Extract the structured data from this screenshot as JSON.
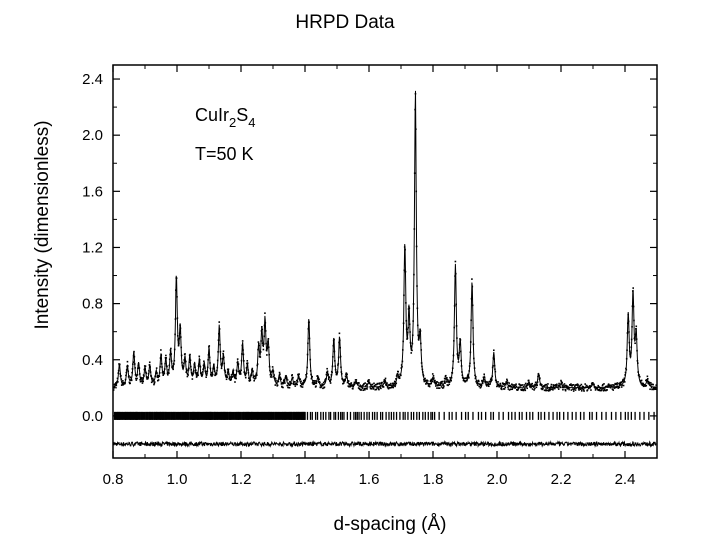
{
  "chart_data": {
    "type": "line",
    "title": "HRPD Data",
    "xlabel": "d-spacing (Å)",
    "ylabel": "Intensity (dimensionless)",
    "xlim": [
      0.8,
      2.5
    ],
    "ylim": [
      -0.3,
      2.5
    ],
    "xticks": [
      0.8,
      1.0,
      1.2,
      1.4,
      1.6,
      1.8,
      2.0,
      2.2,
      2.4
    ],
    "xtick_labels": [
      "0.8",
      "1.0",
      "1.2",
      "1.4",
      "1.6",
      "1.8",
      "2.0",
      "2.2",
      "2.4"
    ],
    "yticks": [
      0.0,
      0.4,
      0.8,
      1.2,
      1.6,
      2.0,
      2.4
    ],
    "ytick_labels": [
      "0.0",
      "0.4",
      "0.8",
      "1.2",
      "1.6",
      "2.0",
      "2.4"
    ],
    "grid": false,
    "annotation": {
      "formula_parts": [
        {
          "text": "CuIr",
          "sub": false
        },
        {
          "text": "2",
          "sub": true
        },
        {
          "text": "S",
          "sub": false
        },
        {
          "text": "4",
          "sub": true
        }
      ],
      "temperature": "T=50 K"
    },
    "baseline": 0.2,
    "difference_offset": -0.2,
    "reflection_marker_y": 0.0,
    "peaks": [
      {
        "x": 0.82,
        "y": 0.36
      },
      {
        "x": 0.845,
        "y": 0.35
      },
      {
        "x": 0.865,
        "y": 0.44
      },
      {
        "x": 0.88,
        "y": 0.36
      },
      {
        "x": 0.9,
        "y": 0.33
      },
      {
        "x": 0.915,
        "y": 0.35
      },
      {
        "x": 0.935,
        "y": 0.3
      },
      {
        "x": 0.95,
        "y": 0.42
      },
      {
        "x": 0.965,
        "y": 0.38
      },
      {
        "x": 0.98,
        "y": 0.42
      },
      {
        "x": 0.998,
        "y": 0.96
      },
      {
        "x": 1.01,
        "y": 0.58
      },
      {
        "x": 1.025,
        "y": 0.38
      },
      {
        "x": 1.04,
        "y": 0.4
      },
      {
        "x": 1.055,
        "y": 0.35
      },
      {
        "x": 1.07,
        "y": 0.38
      },
      {
        "x": 1.085,
        "y": 0.35
      },
      {
        "x": 1.1,
        "y": 0.46
      },
      {
        "x": 1.115,
        "y": 0.33
      },
      {
        "x": 1.132,
        "y": 0.62
      },
      {
        "x": 1.145,
        "y": 0.4
      },
      {
        "x": 1.16,
        "y": 0.3
      },
      {
        "x": 1.175,
        "y": 0.3
      },
      {
        "x": 1.19,
        "y": 0.36
      },
      {
        "x": 1.205,
        "y": 0.5
      },
      {
        "x": 1.22,
        "y": 0.34
      },
      {
        "x": 1.235,
        "y": 0.3
      },
      {
        "x": 1.255,
        "y": 0.45
      },
      {
        "x": 1.265,
        "y": 0.55
      },
      {
        "x": 1.275,
        "y": 0.63
      },
      {
        "x": 1.285,
        "y": 0.48
      },
      {
        "x": 1.3,
        "y": 0.3
      },
      {
        "x": 1.32,
        "y": 0.28
      },
      {
        "x": 1.34,
        "y": 0.27
      },
      {
        "x": 1.36,
        "y": 0.26
      },
      {
        "x": 1.38,
        "y": 0.28
      },
      {
        "x": 1.412,
        "y": 0.69
      },
      {
        "x": 1.44,
        "y": 0.26
      },
      {
        "x": 1.47,
        "y": 0.3
      },
      {
        "x": 1.49,
        "y": 0.54
      },
      {
        "x": 1.508,
        "y": 0.55
      },
      {
        "x": 1.53,
        "y": 0.28
      },
      {
        "x": 1.56,
        "y": 0.24
      },
      {
        "x": 1.6,
        "y": 0.24
      },
      {
        "x": 1.65,
        "y": 0.25
      },
      {
        "x": 1.69,
        "y": 0.26
      },
      {
        "x": 1.712,
        "y": 1.18
      },
      {
        "x": 1.725,
        "y": 0.66
      },
      {
        "x": 1.745,
        "y": 2.28
      },
      {
        "x": 1.76,
        "y": 0.5
      },
      {
        "x": 1.8,
        "y": 0.26
      },
      {
        "x": 1.84,
        "y": 0.25
      },
      {
        "x": 1.87,
        "y": 1.06
      },
      {
        "x": 1.885,
        "y": 0.5
      },
      {
        "x": 1.922,
        "y": 0.95
      },
      {
        "x": 1.96,
        "y": 0.27
      },
      {
        "x": 1.99,
        "y": 0.45
      },
      {
        "x": 2.03,
        "y": 0.24
      },
      {
        "x": 2.1,
        "y": 0.24
      },
      {
        "x": 2.13,
        "y": 0.3
      },
      {
        "x": 2.2,
        "y": 0.23
      },
      {
        "x": 2.3,
        "y": 0.23
      },
      {
        "x": 2.41,
        "y": 0.7
      },
      {
        "x": 2.425,
        "y": 0.84
      },
      {
        "x": 2.435,
        "y": 0.55
      },
      {
        "x": 2.47,
        "y": 0.25
      }
    ]
  }
}
